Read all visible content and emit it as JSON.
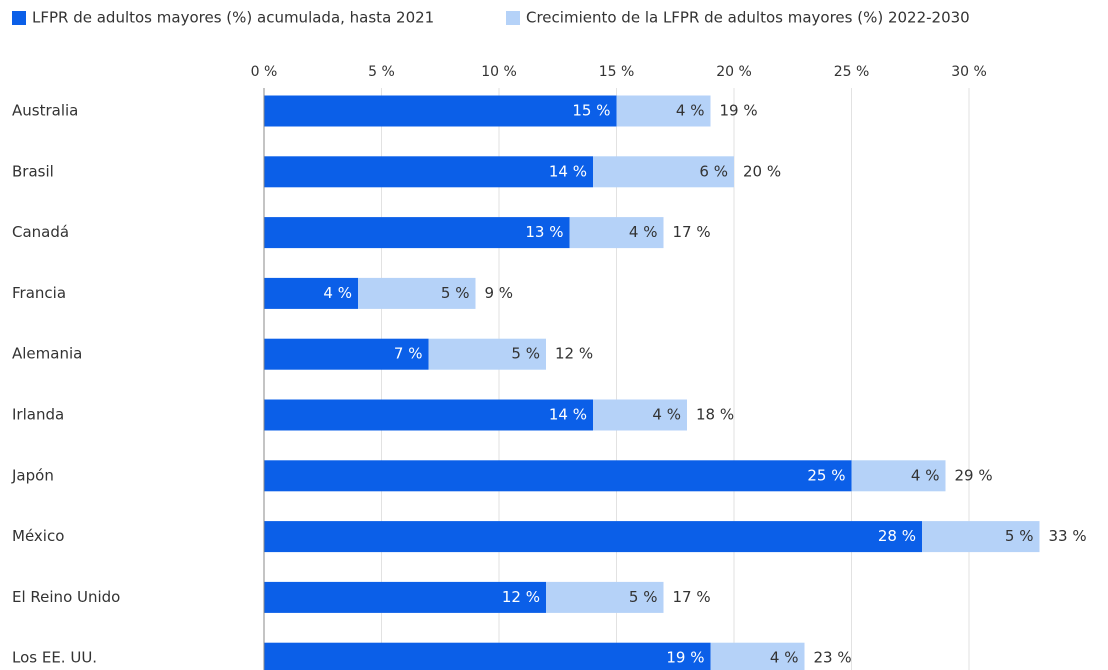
{
  "chart_data": {
    "type": "bar",
    "orientation": "horizontal",
    "stacked": true,
    "categories": [
      "Australia",
      "Brasil",
      "Canadá",
      "Francia",
      "Alemania",
      "Irlanda",
      "Japón",
      "México",
      "El Reino Unido",
      "Los EE. UU."
    ],
    "series": [
      {
        "name": "LFPR de adultos mayores (%) acumulada, hasta 2021",
        "color": "#0b5fe8",
        "values": [
          15,
          14,
          13,
          4,
          7,
          14,
          25,
          28,
          12,
          19
        ],
        "value_labels": [
          "15 %",
          "14 %",
          "13 %",
          "4 %",
          "7 %",
          "14 %",
          "25 %",
          "28 %",
          "12 %",
          "19 %"
        ]
      },
      {
        "name": "Crecimiento de la LFPR de adultos mayores (%) 2022-2030",
        "color": "#b5d2f8",
        "values": [
          4,
          6,
          4,
          5,
          5,
          4,
          4,
          5,
          5,
          4
        ],
        "value_labels": [
          "4 %",
          "6 %",
          "4 %",
          "5 %",
          "5 %",
          "4 %",
          "4 %",
          "5 %",
          "5 %",
          "4 %"
        ]
      }
    ],
    "totals": [
      19,
      20,
      17,
      9,
      12,
      18,
      29,
      33,
      17,
      23
    ],
    "total_labels": [
      "19 %",
      "20 %",
      "17 %",
      "9 %",
      "12 %",
      "18 %",
      "29 %",
      "33 %",
      "17 %",
      "23 %"
    ],
    "xlim": [
      0,
      35
    ],
    "xticks": [
      {
        "value": 0,
        "label": "0 %"
      },
      {
        "value": 5,
        "label": "5 %"
      },
      {
        "value": 10,
        "label": "10 %"
      },
      {
        "value": 15,
        "label": "15 %"
      },
      {
        "value": 20,
        "label": "20 %"
      },
      {
        "value": 25,
        "label": "25 %"
      },
      {
        "value": 30,
        "label": "30 %"
      }
    ],
    "grid": true,
    "legend": "top"
  }
}
